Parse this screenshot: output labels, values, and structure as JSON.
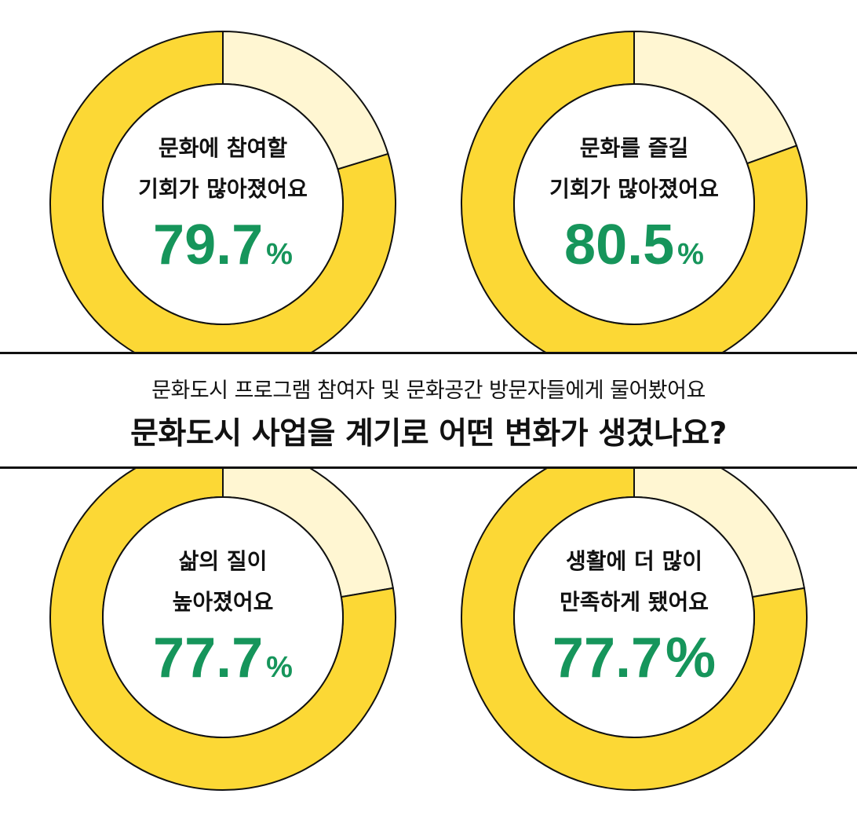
{
  "header": {
    "subtitle": "문화도시 프로그램 참여자 및 문화공간 방문자들에게 물어봤어요",
    "title": "문화도시 사업을 계기로 어떤 변화가 생겼나요?"
  },
  "colors": {
    "yes": "#fcd835",
    "no": "#fff6d2",
    "stroke": "#111111",
    "percent_text": "#16955b"
  },
  "chart_data": [
    {
      "type": "pie",
      "labels": [
        "문화에 참여할",
        "기회가 많아졌어요"
      ],
      "value": 79.7,
      "percent_label": "79.7",
      "unit": "%"
    },
    {
      "type": "pie",
      "labels": [
        "문화를 즐길",
        "기회가 많아졌어요"
      ],
      "value": 80.5,
      "percent_label": "80.5",
      "unit": "%"
    },
    {
      "type": "pie",
      "labels": [
        "삶의 질이",
        "높아졌어요"
      ],
      "value": 77.7,
      "percent_label": "77.7",
      "unit": "%"
    },
    {
      "type": "pie",
      "labels": [
        "생활에 더 많이",
        "만족하게 됐어요"
      ],
      "value": 77.7,
      "percent_label": "77.7",
      "unit": "%"
    }
  ]
}
